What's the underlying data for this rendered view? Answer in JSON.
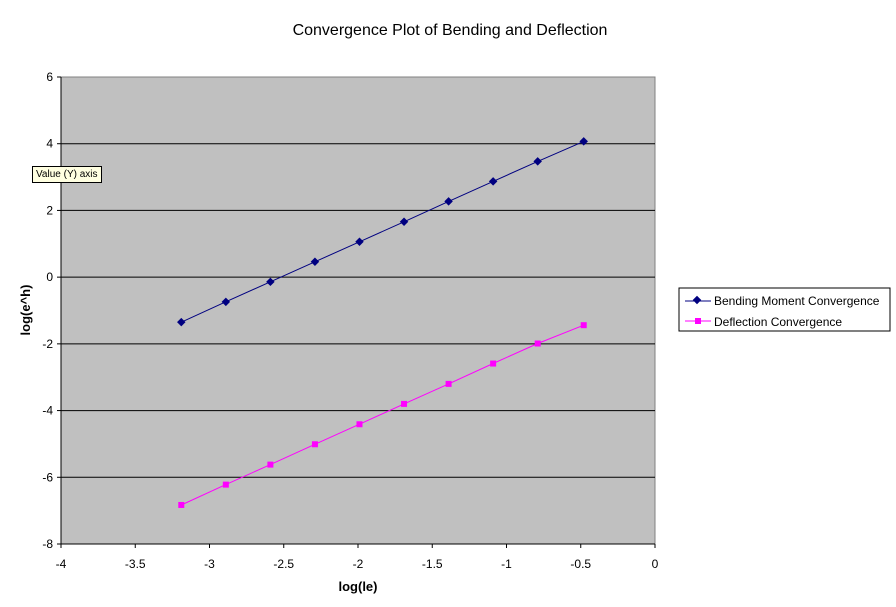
{
  "tooltip": {
    "text": "Value (Y) axis"
  },
  "chart_data": {
    "type": "line",
    "title": "Convergence Plot of Bending and Deflection",
    "xlabel": "log(le)",
    "ylabel": "log(e^h)",
    "xlim": [
      -4,
      0
    ],
    "ylim": [
      -8,
      6
    ],
    "xticks": [
      -4,
      -3.5,
      -3,
      -2.5,
      -2,
      -1.5,
      -1,
      -0.5,
      0
    ],
    "xtick_labels": [
      "-4",
      "-3.5",
      "-3",
      "-2.5",
      "-2",
      "-1.5",
      "-1",
      "-0.5",
      "0"
    ],
    "yticks": [
      -8,
      -6,
      -4,
      -2,
      0,
      2,
      4,
      6
    ],
    "ytick_labels": [
      "-8",
      "-6",
      "-4",
      "-2",
      "0",
      "2",
      "4",
      "6"
    ],
    "grid": "horizontal",
    "plot_background": "#c0c0c0",
    "legend_position": "right",
    "series": [
      {
        "name": "Bending Moment Convergence",
        "color": "#000080",
        "marker": "diamond",
        "x": [
          -3.19,
          -2.89,
          -2.59,
          -2.29,
          -1.99,
          -1.69,
          -1.39,
          -1.09,
          -0.79,
          -0.48
        ],
        "y": [
          -1.35,
          -0.74,
          -0.14,
          0.46,
          1.06,
          1.66,
          2.27,
          2.87,
          3.47,
          4.07
        ]
      },
      {
        "name": "Deflection Convergence",
        "color": "#ff00ff",
        "marker": "square",
        "x": [
          -3.19,
          -2.89,
          -2.59,
          -2.29,
          -1.99,
          -1.69,
          -1.39,
          -1.09,
          -0.79,
          -0.48
        ],
        "y": [
          -6.83,
          -6.22,
          -5.62,
          -5.01,
          -4.41,
          -3.8,
          -3.2,
          -2.59,
          -1.99,
          -1.44
        ]
      }
    ]
  }
}
